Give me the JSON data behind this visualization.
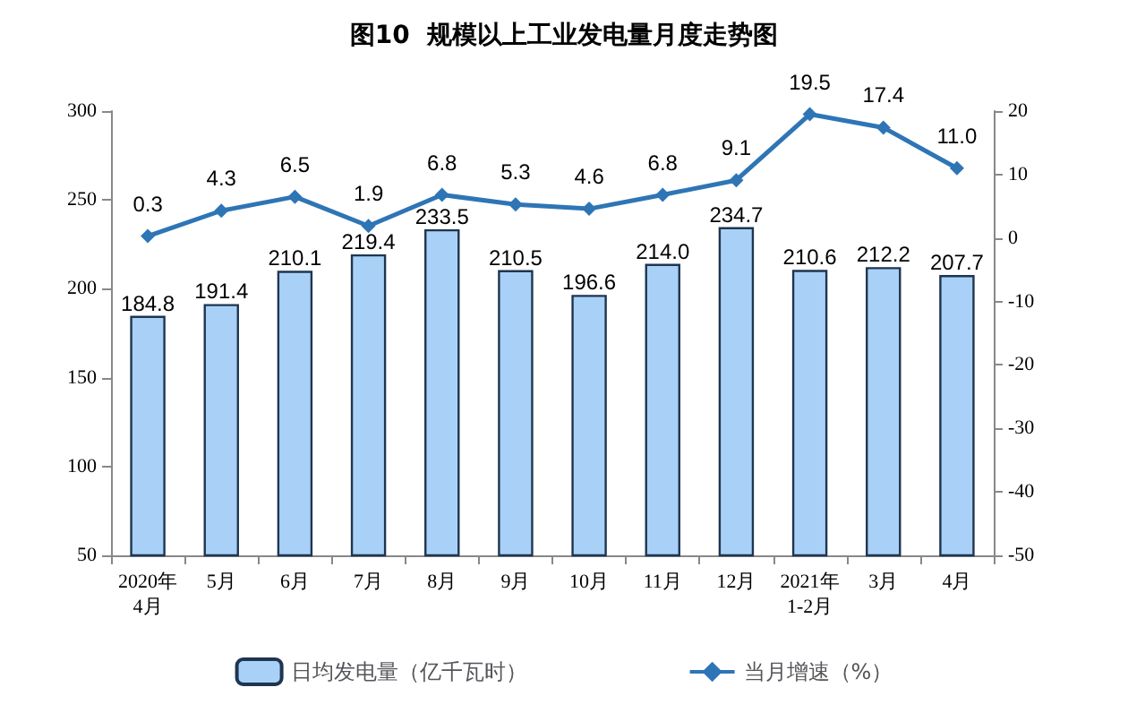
{
  "chart_data": {
    "type": "bar",
    "title": "图10  规模以上工业发电量月度走势图",
    "categories": [
      "2020年\n4月",
      "5月",
      "6月",
      "7月",
      "8月",
      "9月",
      "10月",
      "11月",
      "12月",
      "2021年\n1-2月",
      "3月",
      "4月"
    ],
    "series": [
      {
        "name": "日均发电量（亿千瓦时）",
        "color": "#a9d1f7",
        "values": [
          184.8,
          191.4,
          210.1,
          219.4,
          233.5,
          210.5,
          196.6,
          214.0,
          234.7,
          210.6,
          212.2,
          207.7
        ],
        "value_labels": [
          "184.8",
          "191.4",
          "210.1",
          "219.4",
          "233.5",
          "210.5",
          "196.6",
          "214.0",
          "234.7",
          "210.6",
          "212.2",
          "207.7"
        ]
      },
      {
        "name": "当月增速（%）",
        "type": "line",
        "axis": "y2",
        "color": "#2e75b6",
        "marker": "diamond",
        "values": [
          0.3,
          4.3,
          6.5,
          1.9,
          6.8,
          5.3,
          4.6,
          6.8,
          9.1,
          19.5,
          17.4,
          11.0
        ],
        "value_labels": [
          "0.3",
          "4.3",
          "6.5",
          "1.9",
          "6.8",
          "5.3",
          "4.6",
          "6.8",
          "9.1",
          "19.5",
          "17.4",
          "11.0"
        ]
      }
    ],
    "ylim": [
      50,
      300
    ],
    "yticks": [
      50,
      100,
      150,
      200,
      250,
      300
    ],
    "y2lim": [
      -50,
      20
    ],
    "y2ticks": [
      -50,
      -40,
      -30,
      -20,
      -10,
      0,
      10,
      20
    ],
    "grid": false,
    "legend": "bottom"
  }
}
